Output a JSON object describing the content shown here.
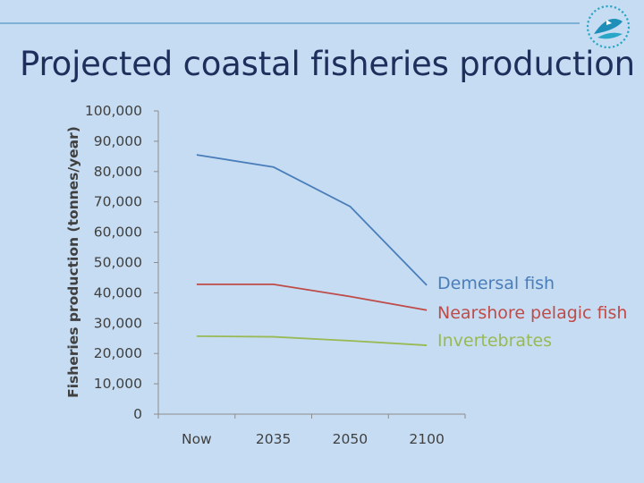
{
  "slide": {
    "title": "Projected coastal fisheries production",
    "logo_icon": "spc-fish-logo-icon"
  },
  "colors": {
    "background": "#c6dcf2",
    "title": "#1f2f5c",
    "rule": "#7fb0d6",
    "axis": "#8c8c8c",
    "demersal": "#4a7ebb",
    "pelagic": "#be4b48",
    "invertebrates": "#98b954"
  },
  "chart_data": {
    "type": "line",
    "title": "",
    "xlabel": "",
    "ylabel": "Fisheries production (tonnes/year)",
    "categories": [
      "Now",
      "2035",
      "2050",
      "2100"
    ],
    "ylim": [
      0,
      100000
    ],
    "yticks": [
      0,
      10000,
      20000,
      30000,
      40000,
      50000,
      60000,
      70000,
      80000,
      90000,
      100000
    ],
    "ytick_labels": [
      "0",
      "10,000",
      "20,000",
      "30,000",
      "40,000",
      "50,000",
      "60,000",
      "70,000",
      "80,000",
      "90,000",
      "100,000"
    ],
    "grid": false,
    "legend_placement": "right, at line ends",
    "series": [
      {
        "name": "Demersal fish",
        "values": [
          85500,
          81500,
          68500,
          42500
        ],
        "color": "#4a7ebb"
      },
      {
        "name": "Nearshore pelagic fish",
        "values": [
          42800,
          42800,
          38800,
          34300
        ],
        "color": "#be4b48"
      },
      {
        "name": "Invertebrates",
        "values": [
          25700,
          25500,
          24200,
          22700
        ],
        "color": "#98b954"
      }
    ]
  }
}
